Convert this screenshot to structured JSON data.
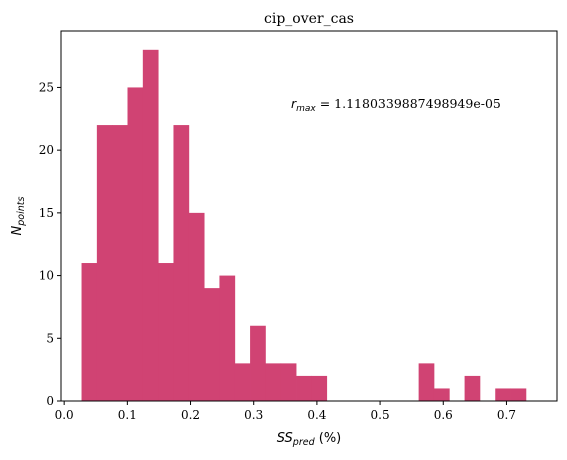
{
  "chart_data": {
    "type": "bar",
    "subtype": "histogram",
    "title": "cip_over_cas",
    "xlabel": {
      "main": "SS",
      "sub": "pred",
      "suffix": " (%)"
    },
    "ylabel": {
      "main": "N",
      "sub": "points"
    },
    "annotation": {
      "main": "r",
      "sub": "max",
      "suffix": " = 1.1180339887498949e-05"
    },
    "xlim": [
      -0.005,
      0.78
    ],
    "ylim": [
      0,
      29.5
    ],
    "xticks": [
      0.0,
      0.1,
      0.2,
      0.3,
      0.4,
      0.5,
      0.6,
      0.7
    ],
    "xtick_labels": [
      "0.0",
      "0.1",
      "0.2",
      "0.3",
      "0.4",
      "0.5",
      "0.6",
      "0.7"
    ],
    "yticks": [
      0,
      5,
      10,
      15,
      20,
      25
    ],
    "ytick_labels": [
      "0",
      "5",
      "10",
      "15",
      "20",
      "25"
    ],
    "bin_start": 0.0275,
    "bin_width": 0.02425,
    "counts": [
      11,
      22,
      22,
      25,
      28,
      11,
      22,
      15,
      9,
      10,
      3,
      6,
      3,
      3,
      2,
      2,
      0,
      0,
      0,
      0,
      0,
      0,
      3,
      1,
      0,
      2,
      0,
      1,
      1
    ],
    "bar_color": "#d04373",
    "grid": false,
    "legend": "none"
  }
}
